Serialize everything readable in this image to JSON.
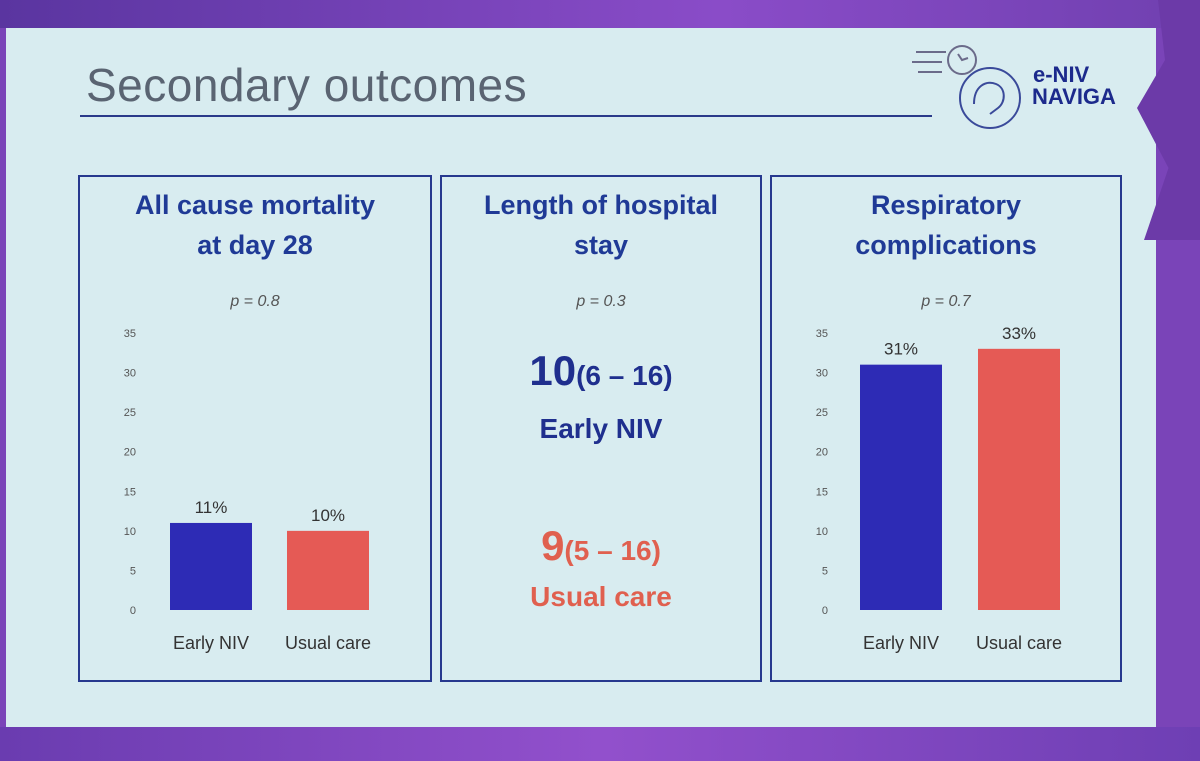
{
  "slide": {
    "title": "Secondary outcomes",
    "logo": {
      "line1": "e-NIV",
      "line2": "NAVIGA"
    }
  },
  "colors": {
    "early": "#2d2bb5",
    "usual": "#e55a55",
    "heading": "#1f3a96"
  },
  "panels": {
    "mortality": {
      "title_line1": "All cause mortality",
      "title_line2": "at day 28",
      "pvalue": "p = 0.8"
    },
    "stay": {
      "title_line1": "Length of hospital",
      "title_line2": "stay",
      "pvalue": "p = 0.3",
      "early": {
        "median": "10",
        "iqr": "(6 – 16)",
        "label": "Early NIV"
      },
      "usual": {
        "median": "9",
        "iqr": "(5 – 16)",
        "label": "Usual care"
      }
    },
    "respiratory": {
      "title_line1": "Respiratory",
      "title_line2": "complications",
      "pvalue": "p = 0.7"
    }
  },
  "chart_data": [
    {
      "type": "bar",
      "title": "All cause mortality at day 28",
      "categories": [
        "Early NIV",
        "Usual care"
      ],
      "values": [
        11,
        10
      ],
      "data_labels": [
        "11%",
        "10%"
      ],
      "yticks": [
        0,
        5,
        10,
        15,
        20,
        25,
        30,
        35
      ],
      "ylim": [
        0,
        35
      ],
      "annotation": "p = 0.8"
    },
    {
      "type": "bar",
      "title": "Respiratory complications",
      "categories": [
        "Early NIV",
        "Usual care"
      ],
      "values": [
        31,
        33
      ],
      "data_labels": [
        "31%",
        "33%"
      ],
      "yticks": [
        0,
        5,
        10,
        15,
        20,
        25,
        30,
        35
      ],
      "ylim": [
        0,
        35
      ],
      "annotation": "p = 0.7"
    }
  ]
}
